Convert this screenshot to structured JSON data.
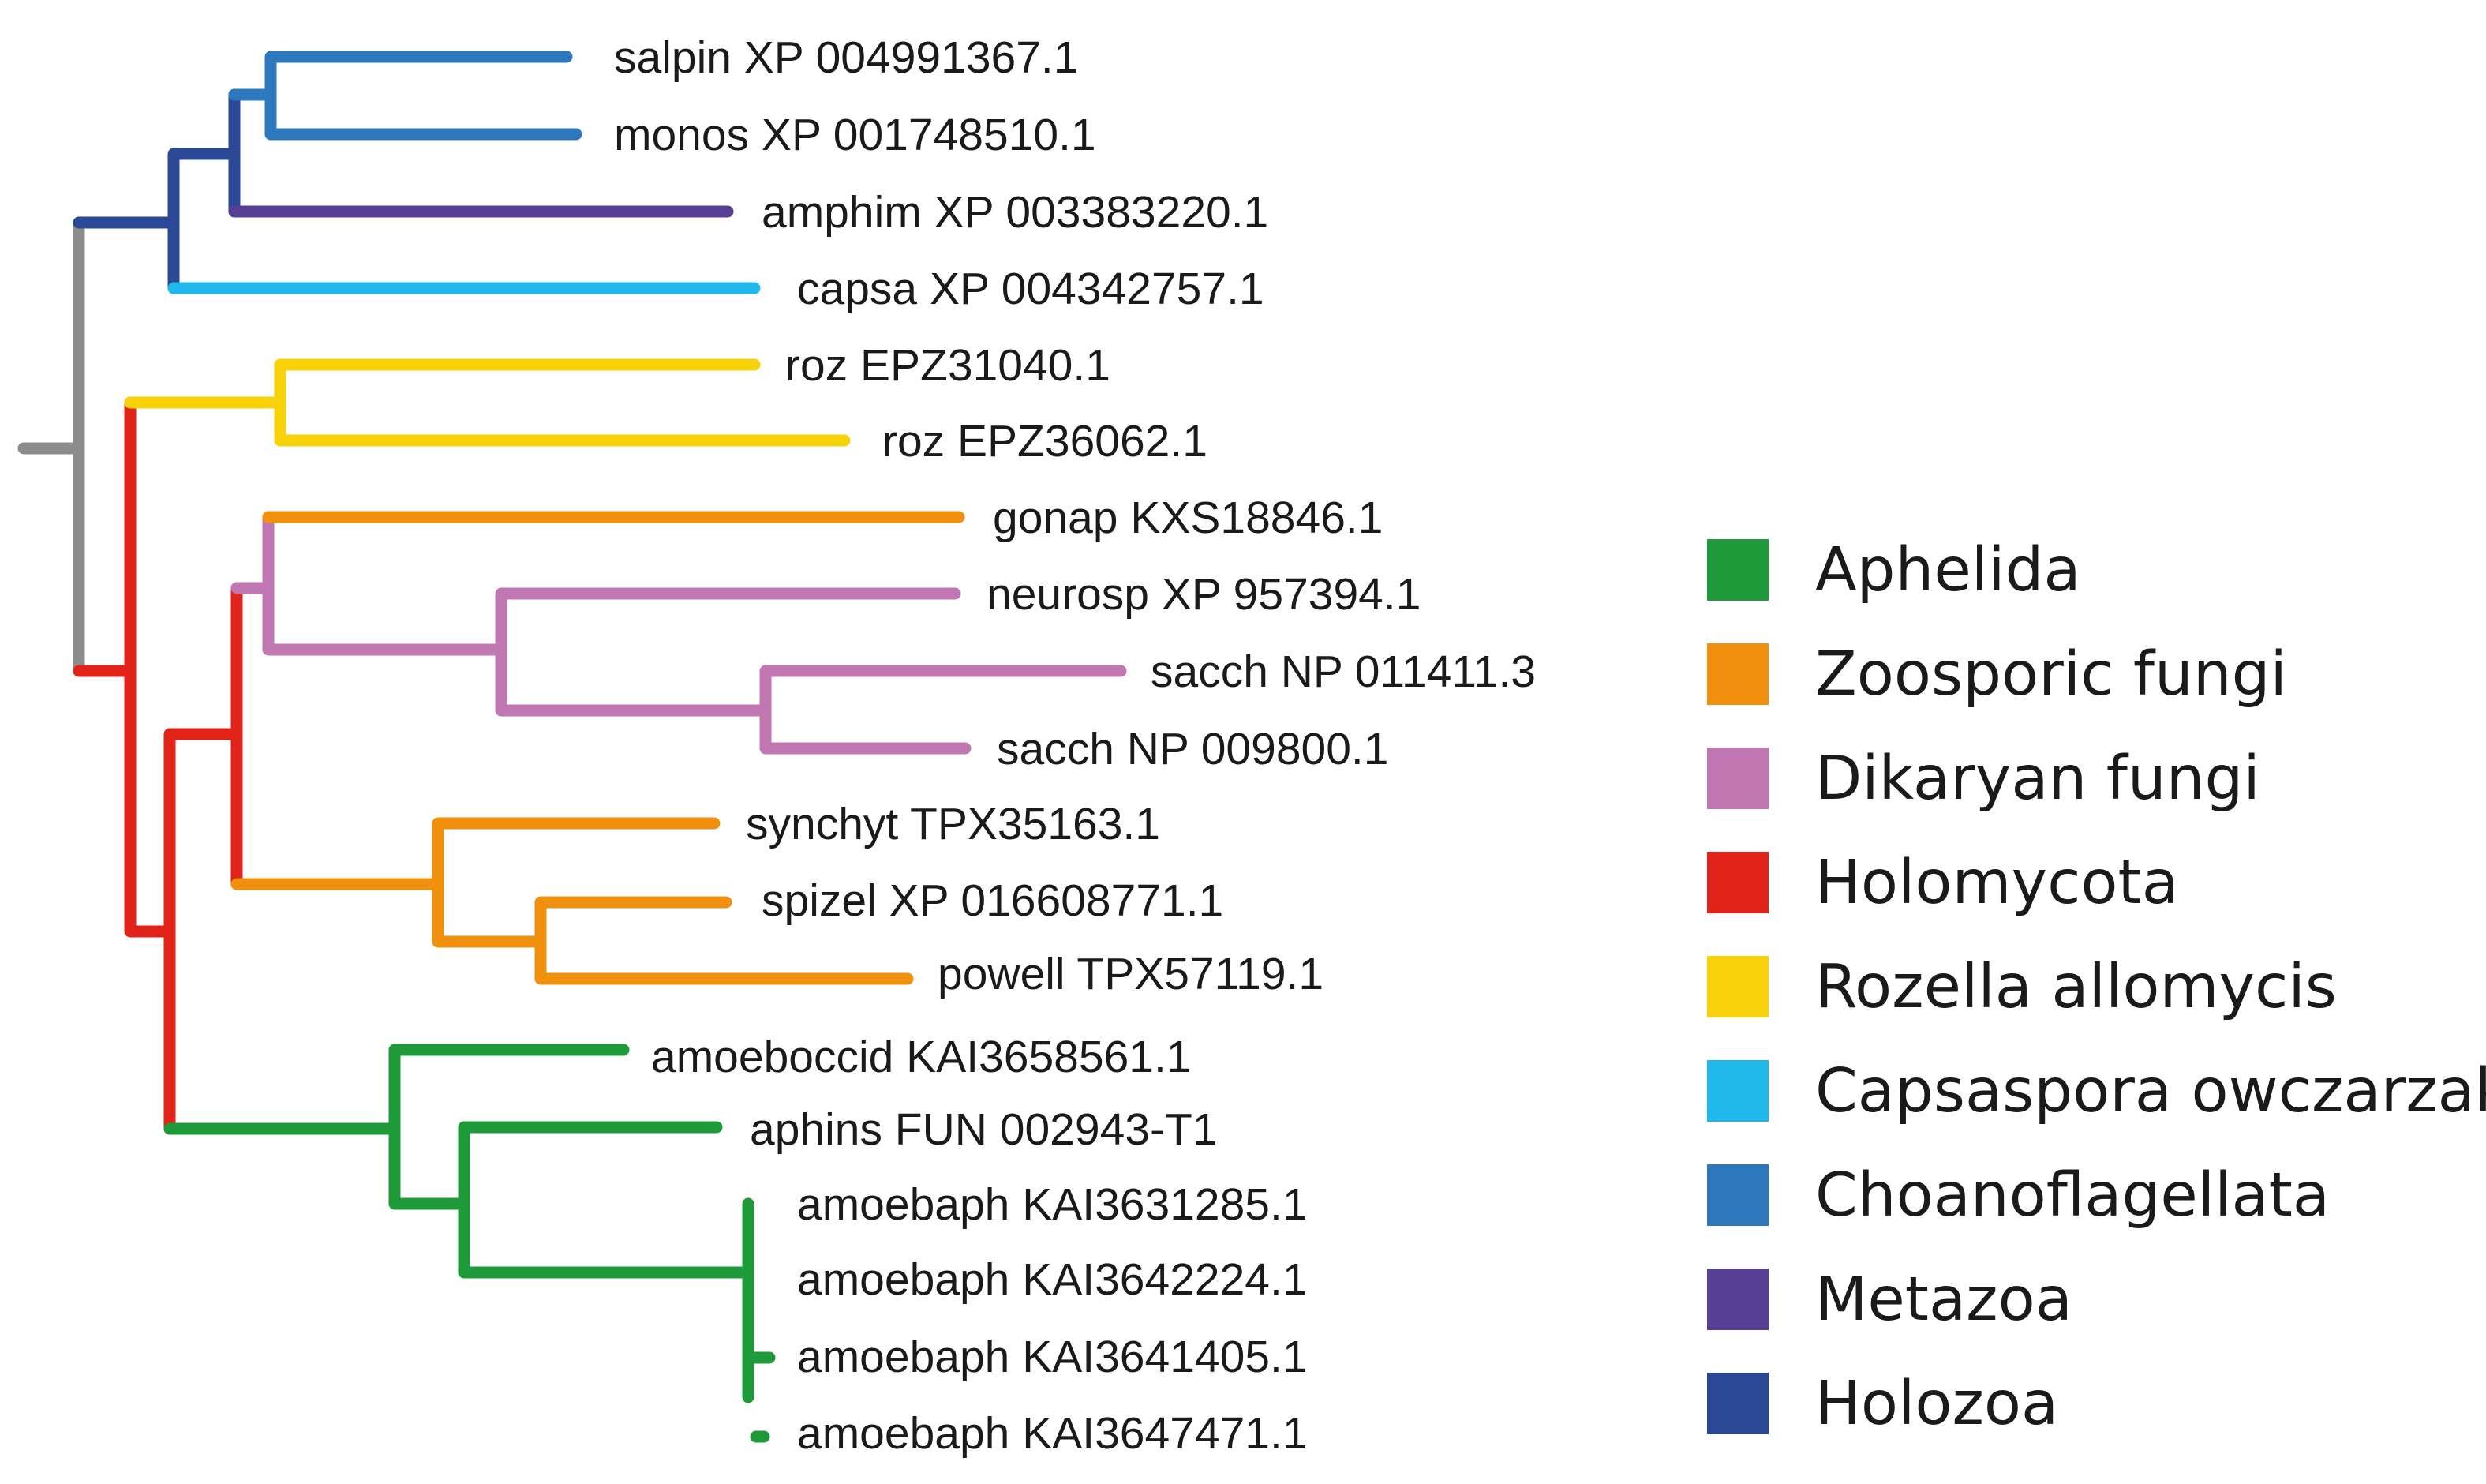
{
  "tree": {
    "leaves": [
      {
        "label": "salpin XP 004991367.1",
        "group": "choano"
      },
      {
        "label": "monos XP 001748510.1",
        "group": "choano"
      },
      {
        "label": "amphim XP 003383220.1",
        "group": "metazoa"
      },
      {
        "label": "capsa XP 004342757.1",
        "group": "capsaspora"
      },
      {
        "label": "roz EPZ31040.1",
        "group": "rozella"
      },
      {
        "label": "roz EPZ36062.1",
        "group": "rozella"
      },
      {
        "label": "gonap KXS18846.1",
        "group": "zoosporic"
      },
      {
        "label": "neurosp XP 957394.1",
        "group": "dikaryan"
      },
      {
        "label": "sacch NP 011411.3",
        "group": "dikaryan"
      },
      {
        "label": "sacch NP 009800.1",
        "group": "dikaryan"
      },
      {
        "label": "synchyt TPX35163.1",
        "group": "zoosporic"
      },
      {
        "label": "spizel XP 016608771.1",
        "group": "zoosporic"
      },
      {
        "label": "powell TPX57119.1",
        "group": "zoosporic"
      },
      {
        "label": "amoeboccid KAI3658561.1",
        "group": "aphelida"
      },
      {
        "label": "aphins FUN 002943-T1",
        "group": "aphelida"
      },
      {
        "label": "amoebaph KAI3631285.1",
        "group": "aphelida"
      },
      {
        "label": "amoebaph KAI3642224.1",
        "group": "aphelida"
      },
      {
        "label": "amoebaph KAI3641405.1",
        "group": "aphelida"
      },
      {
        "label": "amoebaph KAI3647471.1",
        "group": "aphelida"
      }
    ]
  },
  "legend": {
    "items": [
      {
        "key": "aphelida",
        "label": "Aphelida",
        "color": "#1e9a3a"
      },
      {
        "key": "zoosporic",
        "label": "Zoosporic fungi",
        "color": "#f0900c"
      },
      {
        "key": "dikaryan",
        "label": "Dikaryan fungi",
        "color": "#c077b2"
      },
      {
        "key": "holomycota",
        "label": "Holomycota",
        "color": "#e2231a"
      },
      {
        "key": "rozella",
        "label": "Rozella allomycis",
        "color": "#f7d20a"
      },
      {
        "key": "capsaspora",
        "label": "Capsaspora owczarzaki",
        "color": "#20b7ea"
      },
      {
        "key": "choano",
        "label": "Choanoflagellata",
        "color": "#2d77bc"
      },
      {
        "key": "metazoa",
        "label": "Metazoa",
        "color": "#573f95"
      },
      {
        "key": "holozoa",
        "label": "Holozoa",
        "color": "#2b4896"
      }
    ]
  },
  "colors": {
    "root": "#8c8c8c"
  }
}
